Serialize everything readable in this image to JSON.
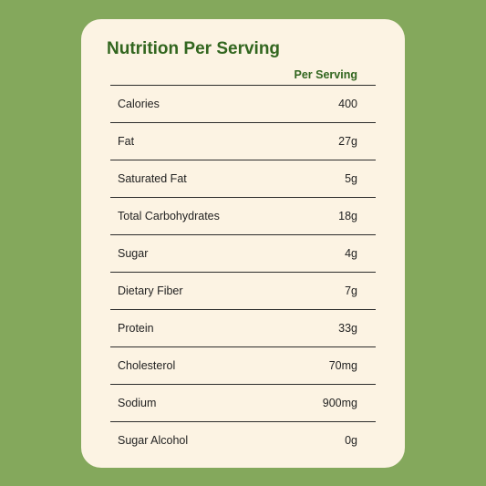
{
  "title": "Nutrition Per Serving",
  "column_header": "Per Serving",
  "rows": [
    {
      "label": "Calories",
      "value": "400"
    },
    {
      "label": "Fat",
      "value": "27g"
    },
    {
      "label": "Saturated Fat",
      "value": "5g"
    },
    {
      "label": "Total Carbohydrates",
      "value": "18g"
    },
    {
      "label": "Sugar",
      "value": "4g"
    },
    {
      "label": "Dietary Fiber",
      "value": "7g"
    },
    {
      "label": "Protein",
      "value": "33g"
    },
    {
      "label": "Cholesterol",
      "value": "70mg"
    },
    {
      "label": "Sodium",
      "value": "900mg"
    },
    {
      "label": "Sugar Alcohol",
      "value": "0g"
    }
  ],
  "colors": {
    "page_bg": "#84a85c",
    "card_bg": "#fcf3e3",
    "heading": "#32661f",
    "rule": "#2b2b2b",
    "text": "#222222"
  }
}
